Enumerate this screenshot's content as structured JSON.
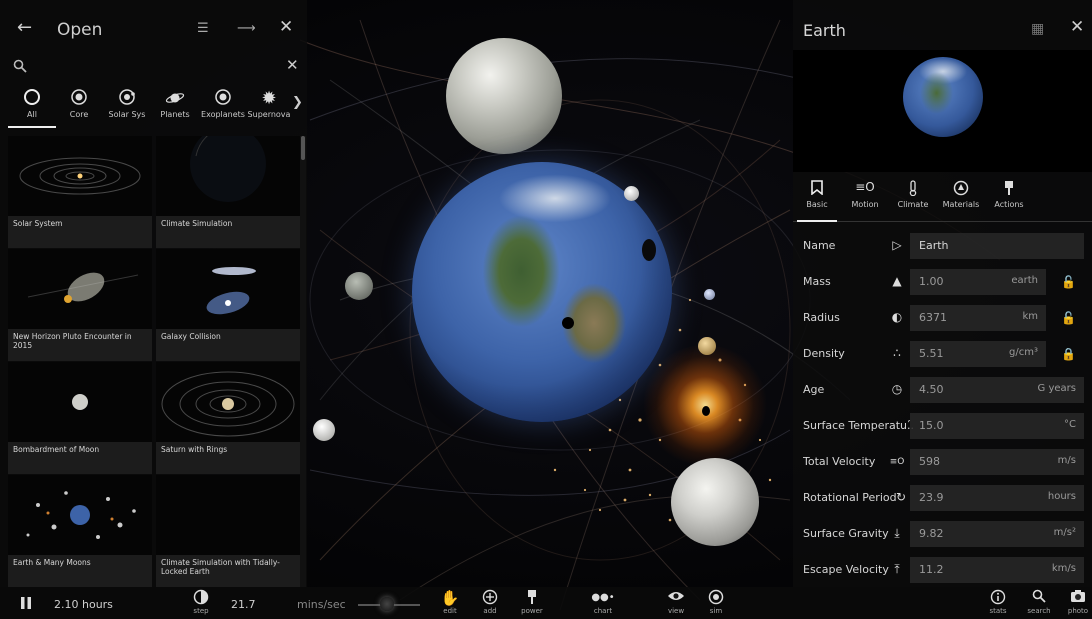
{
  "left_panel": {
    "back_icon": "arrow-left-icon",
    "title": "Open",
    "search_placeholder": "",
    "categories": [
      {
        "label": "All",
        "icon": "circle-outline-icon"
      },
      {
        "label": "Core",
        "icon": "core-icon"
      },
      {
        "label": "Solar Sys",
        "icon": "solar-system-icon"
      },
      {
        "label": "Planets",
        "icon": "planet-icon"
      },
      {
        "label": "Exoplanets",
        "icon": "exoplanet-icon"
      },
      {
        "label": "Supernova",
        "icon": "supernova-icon"
      }
    ],
    "scenarios": [
      {
        "name": "Solar System"
      },
      {
        "name": "Climate Simulation"
      },
      {
        "name": "New Horizon Pluto Encounter in 2015"
      },
      {
        "name": "Galaxy Collision"
      },
      {
        "name": "Bombardment of Moon"
      },
      {
        "name": "Saturn with Rings"
      },
      {
        "name": "Earth & Many Moons"
      },
      {
        "name": "Climate Simulation with Tidally-Locked Earth"
      }
    ]
  },
  "right_panel": {
    "title": "Earth",
    "tabs": [
      {
        "label": "Basic",
        "icon": "bookmark-icon"
      },
      {
        "label": "Motion",
        "icon": "motion-icon"
      },
      {
        "label": "Climate",
        "icon": "thermometer-icon"
      },
      {
        "label": "Materials",
        "icon": "materials-icon"
      },
      {
        "label": "Actions",
        "icon": "power-icon"
      }
    ],
    "properties": {
      "name": {
        "label": "Name",
        "value": "Earth",
        "unit": ""
      },
      "mass": {
        "label": "Mass",
        "value": "1.00",
        "unit": "earth"
      },
      "radius": {
        "label": "Radius",
        "value": "6371",
        "unit": "km"
      },
      "density": {
        "label": "Density",
        "value": "5.51",
        "unit": "g/cm³"
      },
      "age": {
        "label": "Age",
        "value": "4.50",
        "unit": "G years"
      },
      "surface_temperature": {
        "label": "Surface Temperatu...",
        "value": "15.0",
        "unit": "°C"
      },
      "total_velocity": {
        "label": "Total Velocity",
        "value": "598",
        "unit": "m/s"
      },
      "rotational_period": {
        "label": "Rotational Period",
        "value": "23.9",
        "unit": "hours"
      },
      "surface_gravity": {
        "label": "Surface Gravity",
        "value": "9.82",
        "unit": "m/s²"
      },
      "escape_velocity": {
        "label": "Escape Velocity",
        "value": "11.2",
        "unit": "km/s"
      }
    }
  },
  "bottom_bar": {
    "elapsed": "2.10 hours",
    "step_label": "step",
    "speed_value": "21.7",
    "speed_unit": "mins/sec",
    "tools": [
      {
        "label": "edit"
      },
      {
        "label": "add"
      },
      {
        "label": "power"
      },
      {
        "label": "chart"
      },
      {
        "label": "view"
      },
      {
        "label": "sim"
      }
    ],
    "right_tools": [
      {
        "label": "stats"
      },
      {
        "label": "search"
      },
      {
        "label": "photo"
      }
    ]
  }
}
